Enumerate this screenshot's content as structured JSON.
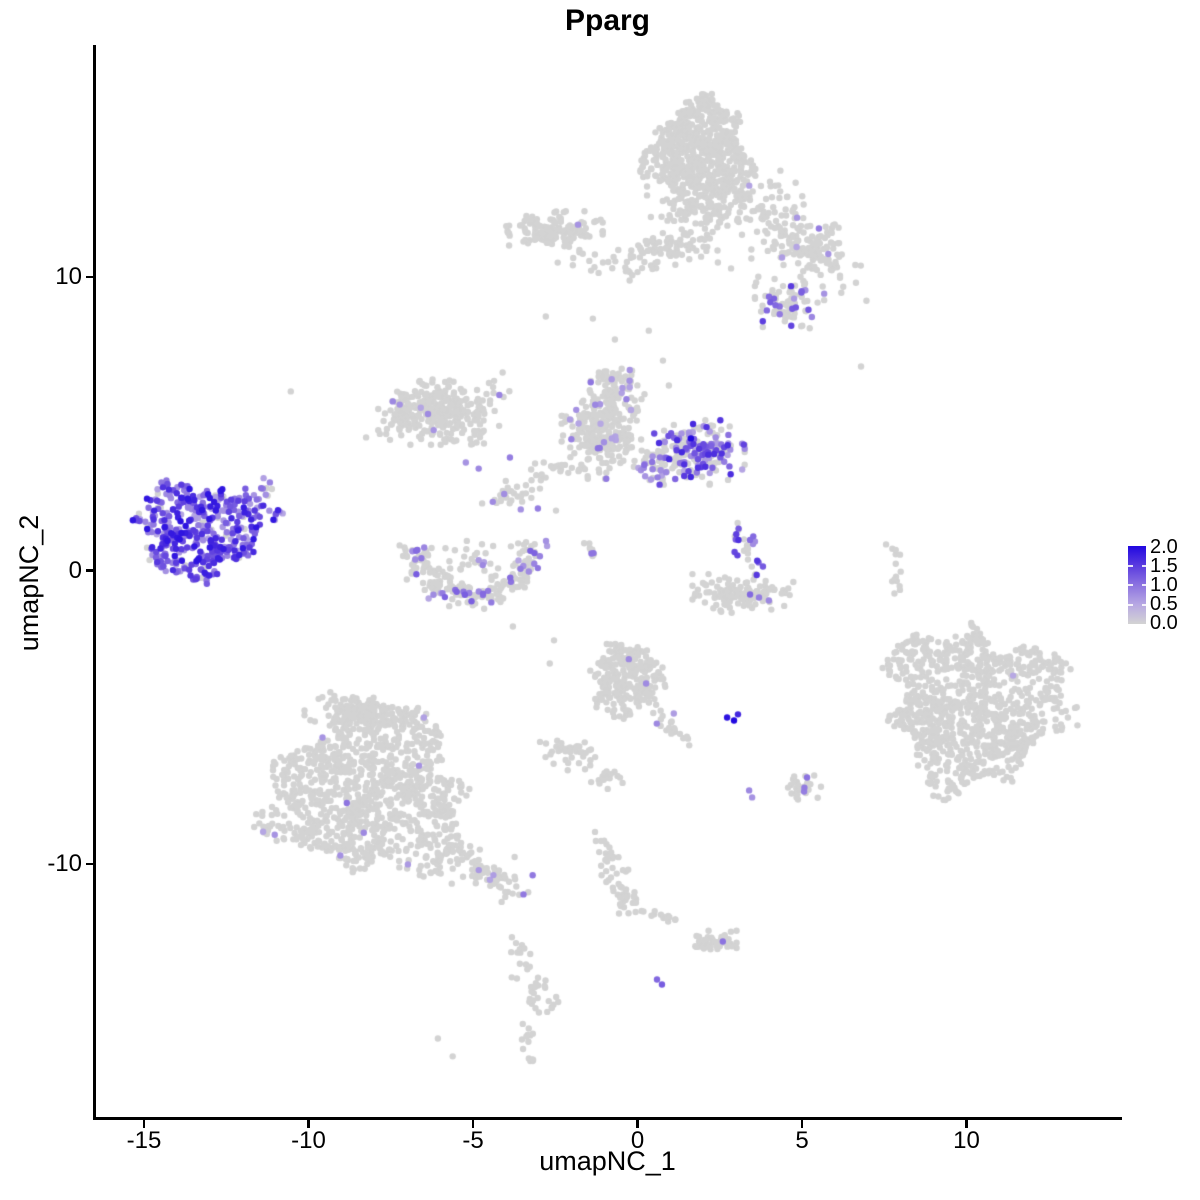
{
  "title": "Pparg",
  "axes": {
    "x": {
      "label": "umapNC_1",
      "ticks": [
        "-15",
        "-10",
        "-5",
        "0",
        "5",
        "10"
      ],
      "tick_values": [
        -15,
        -10,
        -5,
        0,
        5,
        10
      ]
    },
    "y": {
      "label": "umapNC_2",
      "ticks": [
        "10",
        "0",
        "-10"
      ],
      "tick_values": [
        10,
        0,
        -10
      ]
    }
  },
  "legend": {
    "ticks": [
      "2.0",
      "1.5",
      "1.0",
      "0.5",
      "0.0"
    ],
    "tick_values": [
      2.0,
      1.5,
      1.0,
      0.5,
      0.0
    ],
    "range": [
      0,
      2
    ]
  },
  "chart_data": {
    "type": "scatter",
    "title": "Pparg",
    "xlabel": "umapNC_1",
    "ylabel": "umapNC_2",
    "xlim": [
      -16.5,
      14.65
    ],
    "ylim": [
      -18.65,
      17.9
    ],
    "grid": false,
    "legend_position": "right",
    "point_radius_px": 3.2,
    "grey_color": "#d3d3d3",
    "color_stops": [
      [
        0,
        "#d3d3d3"
      ],
      [
        0.5,
        "#b7a8e3"
      ],
      [
        1.0,
        "#8c73e0"
      ],
      [
        1.5,
        "#5a3bdf"
      ],
      [
        2.0,
        "#2108e0"
      ]
    ],
    "seed": 42,
    "clusters": [
      {
        "name": "top-main",
        "type": "disc",
        "cx": 1.85,
        "cy": 14.24,
        "rx": 1.55,
        "ry": 1.62,
        "n": 620,
        "expr_frac": 0.002,
        "expr_lo": 0.5,
        "expr_hi": 0.8
      },
      {
        "name": "top-fringe",
        "type": "gauss",
        "cx": 1.92,
        "cy": 12.26,
        "rx": 1.5,
        "ry": 0.75,
        "n": 120,
        "expr_frac": 0,
        "expr_lo": 0,
        "expr_hi": 0
      },
      {
        "name": "top-right-arm",
        "type": "streak",
        "x1": 3.38,
        "y1": 13.28,
        "x2": 5.87,
        "y2": 10.15,
        "jitter": 0.5,
        "n": 150,
        "expr_frac": 0.01,
        "expr_lo": 0.5,
        "expr_hi": 0.8
      },
      {
        "name": "top-right-blob",
        "type": "gauss",
        "cx": 4.65,
        "cy": 9.13,
        "rx": 1.0,
        "ry": 0.8,
        "n": 75,
        "expr_frac": 0.22,
        "expr_lo": 0.6,
        "expr_hi": 1.5
      },
      {
        "name": "top-right-sparse",
        "type": "gauss",
        "cx": 5.2,
        "cy": 11.1,
        "rx": 1.6,
        "ry": 0.9,
        "n": 55,
        "expr_frac": 0.02,
        "expr_lo": 0.5,
        "expr_hi": 0.8
      },
      {
        "name": "top-band-left",
        "type": "gauss",
        "cx": -2.55,
        "cy": 11.58,
        "rx": 1.35,
        "ry": 0.6,
        "n": 150,
        "expr_frac": 0.004,
        "expr_lo": 0.5,
        "expr_hi": 0.8
      },
      {
        "name": "top-band-right",
        "type": "gauss",
        "cx": 0.94,
        "cy": 11.0,
        "rx": 1.35,
        "ry": 0.45,
        "n": 70,
        "expr_frac": 0.01,
        "expr_lo": 0.5,
        "expr_hi": 0.8
      },
      {
        "name": "band-scatter",
        "type": "gauss",
        "cx": -0.52,
        "cy": 10.49,
        "rx": 1.9,
        "ry": 0.6,
        "n": 35,
        "expr_frac": 0,
        "expr_lo": 0,
        "expr_hi": 0
      },
      {
        "name": "center-left-blob",
        "type": "gauss",
        "cx": -6.11,
        "cy": 5.38,
        "rx": 1.3,
        "ry": 1.0,
        "n": 250,
        "expr_frac": 0.02,
        "expr_lo": 0.5,
        "expr_hi": 0.9
      },
      {
        "name": "center-left-wing",
        "type": "streak",
        "x1": -7.82,
        "y1": 4.7,
        "x2": -6.66,
        "y2": 6.23,
        "jitter": 0.3,
        "n": 45,
        "expr_frac": 0,
        "expr_lo": 0,
        "expr_hi": 0
      },
      {
        "name": "chain-down",
        "type": "streak",
        "x1": -4.26,
        "y1": 6.81,
        "x2": -4.8,
        "y2": 4.19,
        "jitter": 0.22,
        "n": 32,
        "expr_frac": 0.05,
        "expr_lo": 0.5,
        "expr_hi": 0.9
      },
      {
        "name": "center-mid",
        "type": "gauss",
        "cx": -1.06,
        "cy": 4.77,
        "rx": 1.15,
        "ry": 1.5,
        "n": 280,
        "expr_frac": 0.05,
        "expr_lo": 0.5,
        "expr_hi": 1.0
      },
      {
        "name": "center-mid-top",
        "type": "gauss",
        "cx": -0.76,
        "cy": 6.47,
        "rx": 0.8,
        "ry": 0.55,
        "n": 55,
        "expr_frac": 0.05,
        "expr_lo": 0.5,
        "expr_hi": 0.9
      },
      {
        "name": "center-right-purple",
        "type": "gauss",
        "cx": 1.82,
        "cy": 4.02,
        "rx": 1.3,
        "ry": 1.0,
        "n": 230,
        "expr_frac": 0.5,
        "expr_lo": 0.5,
        "expr_hi": 1.7
      },
      {
        "name": "center-gap",
        "type": "gauss",
        "cx": 0.55,
        "cy": 3.58,
        "rx": 0.6,
        "ry": 0.5,
        "n": 40,
        "expr_frac": 0.25,
        "expr_lo": 0.5,
        "expr_hi": 1.2
      },
      {
        "name": "center-left-arm",
        "type": "streak",
        "x1": -2.1,
        "y1": 3.68,
        "x2": -4.23,
        "y2": 2.38,
        "jitter": 0.28,
        "n": 48,
        "expr_frac": 0.06,
        "expr_lo": 0.5,
        "expr_hi": 0.9
      },
      {
        "name": "left-purple",
        "type": "disc",
        "cx": -13.29,
        "cy": 1.43,
        "rx": 1.95,
        "ry": 1.55,
        "n": 420,
        "expr_frac": 0.93,
        "expr_lo": 0.5,
        "expr_hi": 1.9
      },
      {
        "name": "left-purple-tail",
        "type": "streak",
        "x1": -11.83,
        "y1": 2.38,
        "x2": -11.25,
        "y2": 2.93,
        "jitter": 0.16,
        "n": 16,
        "expr_frac": 0.6,
        "expr_lo": 0.5,
        "expr_hi": 1.3
      },
      {
        "name": "bowl",
        "type": "arc",
        "cx": -5.02,
        "cy": 0.61,
        "r": 1.7,
        "a0": 170,
        "a1": 375,
        "squash": 0.85,
        "thick": 0.5,
        "n": 215,
        "expr_frac": 0.18,
        "expr_lo": 0.5,
        "expr_hi": 1.2
      },
      {
        "name": "bowl-inner",
        "type": "gauss",
        "cx": -5.08,
        "cy": 0.35,
        "rx": 0.9,
        "ry": 0.6,
        "n": 25,
        "expr_frac": 0.1,
        "expr_lo": 0.5,
        "expr_hi": 1.0
      },
      {
        "name": "mini-streak",
        "type": "streak",
        "x1": -1.64,
        "y1": 1.12,
        "x2": -1.19,
        "y2": 0.44,
        "jitter": 0.1,
        "n": 9,
        "expr_frac": 0.2,
        "expr_lo": 0.8,
        "expr_hi": 1.0
      },
      {
        "name": "right-of-center-streak",
        "type": "streak",
        "x1": 3.07,
        "y1": 1.46,
        "x2": 3.65,
        "y2": -0.27,
        "jitter": 0.2,
        "n": 26,
        "expr_frac": 0.7,
        "expr_lo": 0.6,
        "expr_hi": 1.6
      },
      {
        "name": "right-of-center-bowl",
        "type": "gauss",
        "cx": 3.19,
        "cy": -0.78,
        "rx": 1.4,
        "ry": 0.6,
        "n": 135,
        "expr_frac": 0.03,
        "expr_lo": 0.5,
        "expr_hi": 1.1
      },
      {
        "name": "right-streak",
        "type": "streak",
        "x1": 7.76,
        "y1": 0.95,
        "x2": 7.88,
        "y2": -0.68,
        "jitter": 0.1,
        "n": 14,
        "expr_frac": 0,
        "expr_lo": 0,
        "expr_hi": 0
      },
      {
        "name": "right-big",
        "type": "disc",
        "cx": 10.28,
        "cy": -4.63,
        "rx": 2.7,
        "ry": 2.6,
        "n": 950,
        "expr_frac": 0,
        "expr_lo": 0,
        "expr_hi": 0
      },
      {
        "name": "bottom-left-big",
        "type": "disc",
        "cx": -8.18,
        "cy": -7.56,
        "rx": 2.95,
        "ry": 2.75,
        "n": 1000,
        "expr_frac": 0.012,
        "expr_lo": 0.5,
        "expr_hi": 1.0
      },
      {
        "name": "bottom-left-top",
        "type": "gauss",
        "cx": -8.49,
        "cy": -4.97,
        "rx": 1.5,
        "ry": 0.75,
        "n": 120,
        "expr_frac": 0.02,
        "expr_lo": 0.5,
        "expr_hi": 1.0
      },
      {
        "name": "bottom-left-tail",
        "type": "streak",
        "x1": -5.63,
        "y1": -9.6,
        "x2": -3.92,
        "y2": -10.76,
        "jitter": 0.35,
        "n": 85,
        "expr_frac": 0.04,
        "expr_lo": 0.5,
        "expr_hi": 1.0
      },
      {
        "name": "bottom-left-tail2",
        "type": "streak",
        "x1": -3.68,
        "y1": -12.53,
        "x2": -2.95,
        "y2": -14.92,
        "jitter": 0.25,
        "n": 40,
        "expr_frac": 0,
        "expr_lo": 0,
        "expr_hi": 0
      },
      {
        "name": "bottom-left-tail3",
        "type": "streak",
        "x1": -3.44,
        "y1": -15.39,
        "x2": -3.22,
        "y2": -16.86,
        "jitter": 0.1,
        "n": 14,
        "expr_frac": 0,
        "expr_lo": 0,
        "expr_hi": 0
      },
      {
        "name": "bottom-mid-top",
        "type": "disc",
        "cx": -0.33,
        "cy": -3.68,
        "rx": 1.1,
        "ry": 1.2,
        "n": 250,
        "expr_frac": 0.003,
        "expr_lo": 0.5,
        "expr_hi": 0.8
      },
      {
        "name": "bottom-mid-tail",
        "type": "streak",
        "x1": 0.55,
        "y1": -4.84,
        "x2": 1.31,
        "y2": -5.69,
        "jitter": 0.15,
        "n": 22,
        "expr_frac": 0.04,
        "expr_lo": 0.5,
        "expr_hi": 0.8
      },
      {
        "name": "bottom-mid-bits1",
        "type": "gauss",
        "cx": -2.1,
        "cy": -6.2,
        "rx": 0.8,
        "ry": 0.55,
        "n": 40,
        "expr_frac": 0,
        "expr_lo": 0,
        "expr_hi": 0
      },
      {
        "name": "bottom-mid-bits2",
        "type": "gauss",
        "cx": -0.94,
        "cy": -7.12,
        "rx": 0.5,
        "ry": 0.35,
        "n": 20,
        "expr_frac": 0,
        "expr_lo": 0,
        "expr_hi": 0
      },
      {
        "name": "bottom-mid-arm",
        "type": "streak",
        "x1": -1.09,
        "y1": -9.2,
        "x2": -0.21,
        "y2": -11.75,
        "jitter": 0.18,
        "n": 55,
        "expr_frac": 0,
        "expr_lo": 0,
        "expr_hi": 0
      },
      {
        "name": "dash-chain",
        "type": "streak",
        "x1": 0.24,
        "y1": -11.58,
        "x2": 1.09,
        "y2": -11.92,
        "jitter": 0.08,
        "n": 13,
        "expr_frac": 0,
        "expr_lo": 0,
        "expr_hi": 0
      },
      {
        "name": "bottom-right-small",
        "type": "gauss",
        "cx": 2.34,
        "cy": -12.64,
        "rx": 0.6,
        "ry": 0.4,
        "n": 45,
        "expr_frac": 0.04,
        "expr_lo": 0.8,
        "expr_hi": 1.1
      },
      {
        "name": "right-small",
        "type": "gauss",
        "cx": 4.96,
        "cy": -7.36,
        "rx": 0.55,
        "ry": 0.5,
        "n": 32,
        "expr_frac": 0.08,
        "expr_lo": 0.8,
        "expr_hi": 1.1
      }
    ],
    "singles": [
      [
        -2.8,
        8.65,
        0
      ],
      [
        -10.55,
        6.1,
        0
      ],
      [
        6.78,
        6.95,
        0
      ],
      [
        -1.82,
        11.78,
        0.7
      ],
      [
        5.5,
        11.65,
        0.9
      ],
      [
        4.38,
        10.66,
        0.6
      ],
      [
        5.66,
        9.43,
        0.7
      ],
      [
        -7.45,
        5.76,
        0.8
      ],
      [
        -7.24,
        5.65,
        0.7
      ],
      [
        -5.23,
        3.68,
        0.7
      ],
      [
        -4.84,
        3.47,
        0.8
      ],
      [
        -3.89,
        3.85,
        0.9
      ],
      [
        -3.04,
        2.11,
        0.9
      ],
      [
        1.61,
        4.5,
        2.0
      ],
      [
        -11.4,
        2.79,
        0.9
      ],
      [
        -2.95,
        3.07,
        0
      ],
      [
        -2.49,
        2.04,
        0
      ],
      [
        -2.55,
        -2.38,
        0
      ],
      [
        -2.68,
        -3.17,
        0
      ],
      [
        -3.8,
        -1.91,
        0
      ],
      [
        11.4,
        -3.58,
        0.5
      ],
      [
        1.09,
        -4.87,
        0.6
      ],
      [
        2.71,
        -5.01,
        1.9
      ],
      [
        2.92,
        -5.11,
        2.0
      ],
      [
        3.04,
        -4.9,
        1.7
      ],
      [
        3.68,
        -0.92,
        0.9
      ],
      [
        3.98,
        -1.02,
        0.8
      ],
      [
        2.58,
        -12.64,
        1.0
      ],
      [
        0.58,
        -13.93,
        1.1
      ],
      [
        0.73,
        -14.1,
        1.2
      ],
      [
        5.14,
        -7.05,
        1.0
      ],
      [
        5.05,
        -7.53,
        0.9
      ],
      [
        3.38,
        -7.49,
        0.8
      ],
      [
        3.47,
        -7.73,
        0.7
      ],
      [
        -6.08,
        -15.94,
        0
      ],
      [
        -5.63,
        -16.55,
        0
      ],
      [
        0.33,
        8.17,
        0
      ],
      [
        0.76,
        7.15,
        0
      ],
      [
        0.94,
        6.3,
        0
      ],
      [
        1.92,
        10.69,
        0
      ],
      [
        2.43,
        10.49,
        0
      ],
      [
        2.83,
        10.29,
        0
      ],
      [
        -1.37,
        8.58,
        0
      ],
      [
        -0.7,
        7.87,
        0
      ]
    ]
  }
}
